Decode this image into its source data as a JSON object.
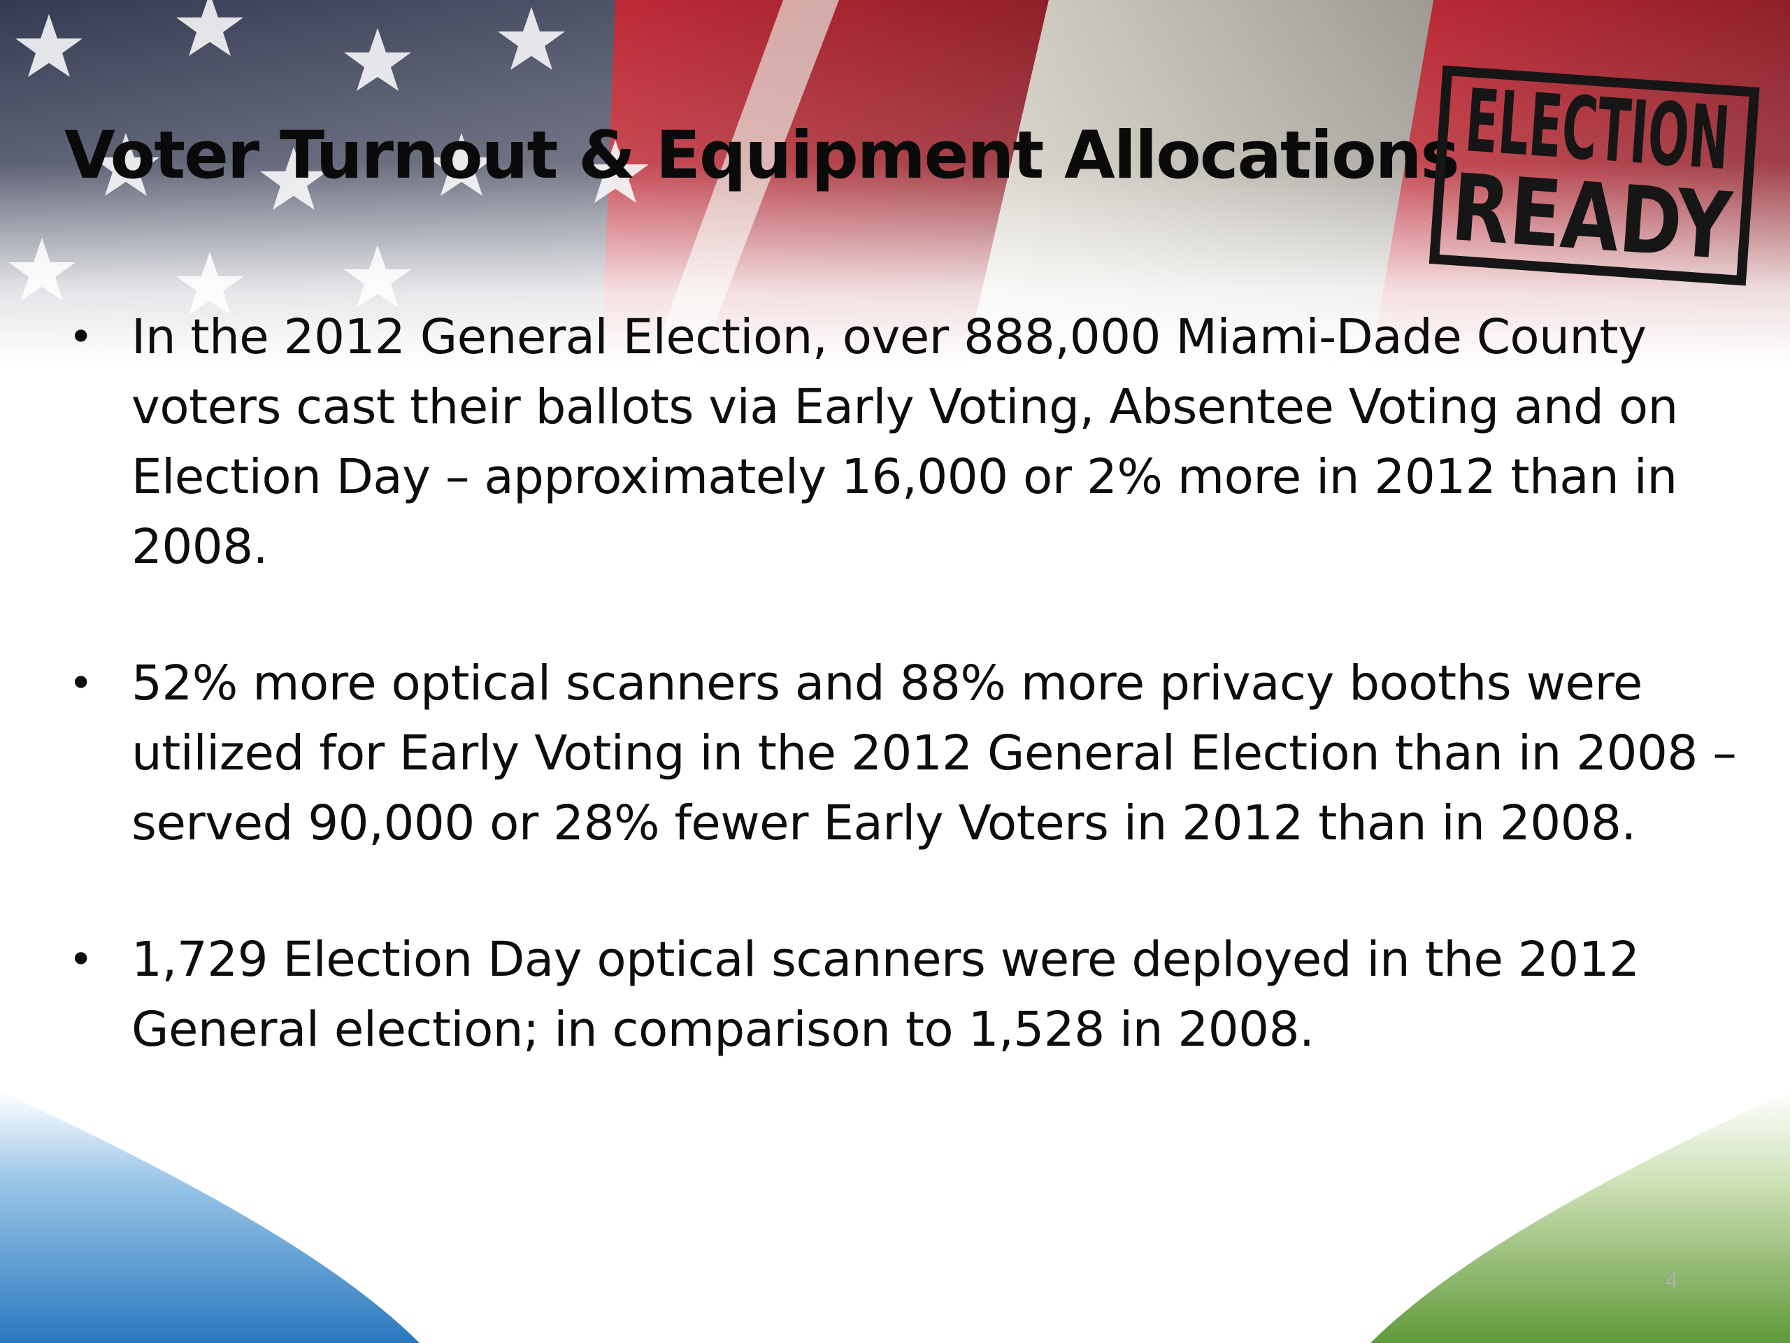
{
  "slide": {
    "title": "Voter Turnout & Equipment Allocations",
    "stamp_logo_text": [
      "ELECTION",
      "READY"
    ],
    "bullets": [
      {
        "text": "In the 2012 General Election, over 888,000 Miami-Dade County voters cast their ballots via Early Voting, Absentee Voting and on Election Day – approximately 16,000 or 2% more in 2012 than in 2008."
      },
      {
        "text": "52% more optical scanners and 88% more privacy booths were utilized for Early Voting in the 2012 General Election than in 2008 – served 90,000 or 28% fewer Early Voters in 2012 than in 2008."
      },
      {
        "text": "1,729 Election Day optical scanners were deployed in the 2012 General election; in comparison to 1,528 in 2008."
      }
    ],
    "bullet_glyph": "•",
    "page_number": "4"
  },
  "colors": {
    "flag_red": "#b8242f",
    "flag_blue": "#2a3350",
    "arc_blue": "#2f7fc1",
    "arc_green": "#6ea44a",
    "title_text": "#0a0a0a"
  },
  "icons": {
    "background": "american-flag-icon",
    "logo": "election-ready-stamp-icon"
  }
}
